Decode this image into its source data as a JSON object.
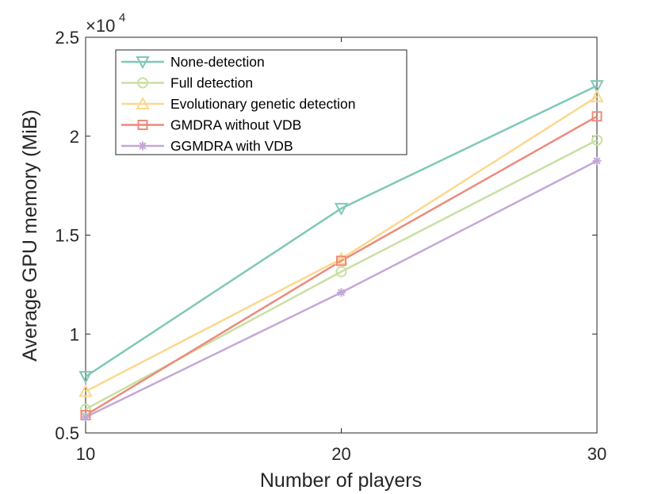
{
  "chart_data": {
    "type": "line",
    "title": "",
    "xlabel": "Number of players",
    "ylabel": "Average GPU memory (MiB)",
    "x": [
      10,
      20,
      30
    ],
    "xlim": [
      10,
      30
    ],
    "ylim": [
      5000,
      25000
    ],
    "x_ticks": [
      10,
      20,
      30
    ],
    "x_tick_labels": [
      "10",
      "20",
      "30"
    ],
    "y_ticks": [
      5000,
      10000,
      15000,
      20000,
      25000
    ],
    "y_tick_labels": [
      "0.5",
      "1",
      "1.5",
      "2",
      "2.5"
    ],
    "y_exponent_base": "×10",
    "y_exponent_power": "4",
    "grid": false,
    "legend_position": "top-left",
    "series": [
      {
        "name": "None-detection",
        "values": [
          7850,
          16350,
          22550
        ],
        "color": "#7fc8b8",
        "marker": "triangle-down"
      },
      {
        "name": "Full detection",
        "values": [
          6200,
          13150,
          19800
        ],
        "color": "#c9e0a3",
        "marker": "circle"
      },
      {
        "name": "Evolutionary genetic detection",
        "values": [
          7100,
          13800,
          22000
        ],
        "color": "#fbd88d",
        "marker": "triangle-up"
      },
      {
        "name": "GMDRA without VDB",
        "values": [
          5900,
          13700,
          21000
        ],
        "color": "#ed8a7c",
        "marker": "square"
      },
      {
        "name": "GGMDRA with VDB",
        "values": [
          5800,
          12100,
          18750
        ],
        "color": "#c4a7d6",
        "marker": "asterisk"
      }
    ]
  }
}
